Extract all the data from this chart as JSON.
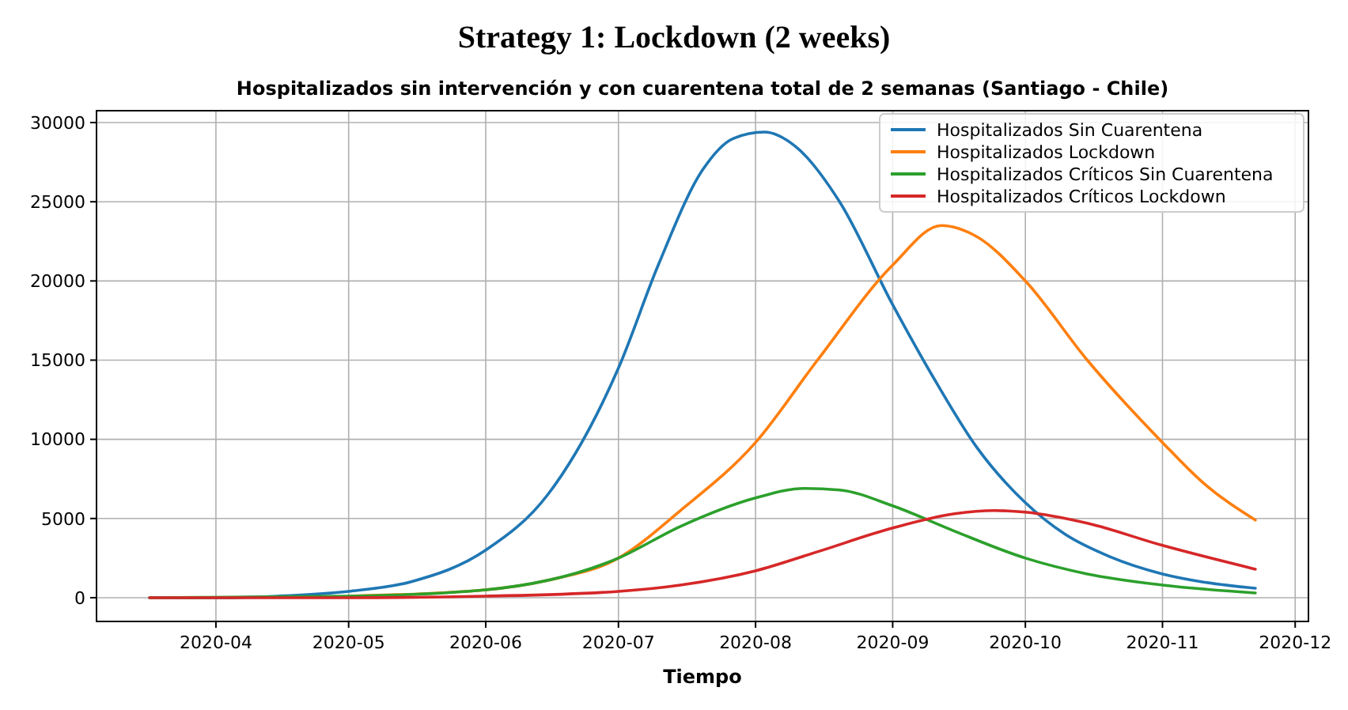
{
  "chart_data": {
    "type": "line",
    "title": "Strategy 1: Lockdown (2 weeks)",
    "subtitle": "Hospitalizados sin intervención y con cuarentena total de 2 semanas (Santiago - Chile)",
    "xlabel": "Tiempo",
    "xlim": [
      "2020-03-05",
      "2020-12-04"
    ],
    "xticks": [
      {
        "value": "2020-04-01",
        "label": "2020-04"
      },
      {
        "value": "2020-05-01",
        "label": "2020-05"
      },
      {
        "value": "2020-06-01",
        "label": "2020-06"
      },
      {
        "value": "2020-07-01",
        "label": "2020-07"
      },
      {
        "value": "2020-08-01",
        "label": "2020-08"
      },
      {
        "value": "2020-09-01",
        "label": "2020-09"
      },
      {
        "value": "2020-10-01",
        "label": "2020-10"
      },
      {
        "value": "2020-11-01",
        "label": "2020-11"
      },
      {
        "value": "2020-12-01",
        "label": "2020-12"
      }
    ],
    "ylim": [
      -1500,
      30750
    ],
    "yticks": [
      0,
      5000,
      10000,
      15000,
      20000,
      25000,
      30000
    ],
    "grid": true,
    "legend": "top right",
    "line_style": "solid",
    "marker": "none",
    "series": [
      {
        "name": "Hospitalizados Sin Cuarentena",
        "color": "#1f77b4",
        "x": [
          "2020-03-17",
          "2020-04-01",
          "2020-04-15",
          "2020-05-01",
          "2020-05-15",
          "2020-06-01",
          "2020-06-15",
          "2020-07-01",
          "2020-07-10",
          "2020-07-20",
          "2020-07-27",
          "2020-08-03",
          "2020-08-10",
          "2020-08-20",
          "2020-09-01",
          "2020-09-10",
          "2020-09-20",
          "2020-10-01",
          "2020-10-10",
          "2020-10-20",
          "2020-11-01",
          "2020-11-10",
          "2020-11-22"
        ],
        "values": [
          0,
          0,
          100,
          400,
          1000,
          3000,
          6500,
          14500,
          21000,
          27000,
          29000,
          29400,
          28500,
          25000,
          18500,
          14000,
          9500,
          6000,
          4000,
          2600,
          1500,
          1000,
          600
        ]
      },
      {
        "name": "Hospitalizados Lockdown",
        "color": "#ff7f0e",
        "x": [
          "2020-05-01",
          "2020-06-01",
          "2020-06-15",
          "2020-07-01",
          "2020-07-15",
          "2020-08-01",
          "2020-08-15",
          "2020-09-01",
          "2020-09-12",
          "2020-09-20",
          "2020-10-01",
          "2020-10-15",
          "2020-11-01",
          "2020-11-10",
          "2020-11-22"
        ],
        "values": [
          100,
          500,
          1100,
          2500,
          5500,
          9800,
          15000,
          21000,
          23500,
          22800,
          20000,
          15000,
          9800,
          7300,
          4900
        ]
      },
      {
        "name": "Hospitalizados Críticos Sin Cuarentena",
        "color": "#2ca02c",
        "x": [
          "2020-03-17",
          "2020-05-01",
          "2020-06-01",
          "2020-07-01",
          "2020-07-15",
          "2020-08-01",
          "2020-08-12",
          "2020-08-20",
          "2020-09-01",
          "2020-09-15",
          "2020-10-01",
          "2020-10-15",
          "2020-11-01",
          "2020-11-22"
        ],
        "values": [
          0,
          100,
          500,
          2500,
          4500,
          6300,
          6900,
          6800,
          5800,
          4200,
          2500,
          1500,
          800,
          300
        ]
      },
      {
        "name": "Hospitalizados Críticos Lockdown",
        "color": "#d62728",
        "x": [
          "2020-03-17",
          "2020-05-01",
          "2020-06-01",
          "2020-07-01",
          "2020-07-15",
          "2020-08-01",
          "2020-08-15",
          "2020-09-01",
          "2020-09-15",
          "2020-09-24",
          "2020-10-01",
          "2020-10-15",
          "2020-11-01",
          "2020-11-22"
        ],
        "values": [
          0,
          0,
          100,
          400,
          800,
          1700,
          2900,
          4400,
          5300,
          5500,
          5400,
          4700,
          3300,
          1800
        ]
      }
    ]
  }
}
